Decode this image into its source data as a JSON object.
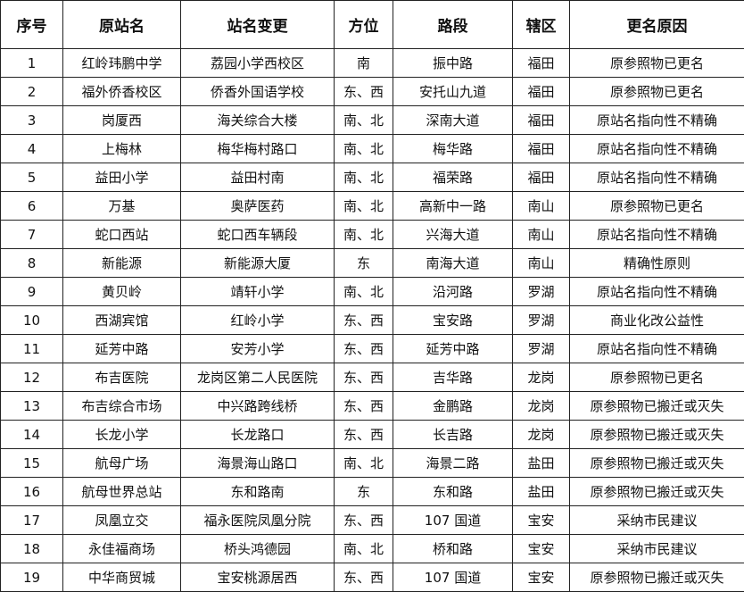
{
  "headers": [
    "序号",
    "原站名",
    "站名变更",
    "方位",
    "路段",
    "辖区",
    "更名原因"
  ],
  "rows": [
    [
      "1",
      "红岭玮鹏中学",
      "荔园小学西校区",
      "南",
      "振中路",
      "福田",
      "原参照物已更名"
    ],
    [
      "2",
      "福外侨香校区",
      "侨香外国语学校",
      "东、西",
      "安托山九道",
      "福田",
      "原参照物已更名"
    ],
    [
      "3",
      "岗厦西",
      "海关综合大楼",
      "南、北",
      "深南大道",
      "福田",
      "原站名指向性不精确"
    ],
    [
      "4",
      "上梅林",
      "梅华梅村路口",
      "南、北",
      "梅华路",
      "福田",
      "原站名指向性不精确"
    ],
    [
      "5",
      "益田小学",
      "益田村南",
      "南、北",
      "福荣路",
      "福田",
      "原站名指向性不精确"
    ],
    [
      "6",
      "万基",
      "奥萨医药",
      "南、北",
      "高新中一路",
      "南山",
      "原参照物已更名"
    ],
    [
      "7",
      "蛇口西站",
      "蛇口西车辆段",
      "南、北",
      "兴海大道",
      "南山",
      "原站名指向性不精确"
    ],
    [
      "8",
      "新能源",
      "新能源大厦",
      "东",
      "南海大道",
      "南山",
      "精确性原则"
    ],
    [
      "9",
      "黄贝岭",
      "靖轩小学",
      "南、北",
      "沿河路",
      "罗湖",
      "原站名指向性不精确"
    ],
    [
      "10",
      "西湖宾馆",
      "红岭小学",
      "东、西",
      "宝安路",
      "罗湖",
      "商业化改公益性"
    ],
    [
      "11",
      "延芳中路",
      "安芳小学",
      "东、西",
      "延芳中路",
      "罗湖",
      "原站名指向性不精确"
    ],
    [
      "12",
      "布吉医院",
      "龙岗区第二人民医院",
      "东、西",
      "吉华路",
      "龙岗",
      "原参照物已更名"
    ],
    [
      "13",
      "布吉综合市场",
      "中兴路跨线桥",
      "东、西",
      "金鹏路",
      "龙岗",
      "原参照物已搬迁或灭失"
    ],
    [
      "14",
      "长龙小学",
      "长龙路口",
      "东、西",
      "长吉路",
      "龙岗",
      "原参照物已搬迁或灭失"
    ],
    [
      "15",
      "航母广场",
      "海景海山路口",
      "南、北",
      "海景二路",
      "盐田",
      "原参照物已搬迁或灭失"
    ],
    [
      "16",
      "航母世界总站",
      "东和路南",
      "东",
      "东和路",
      "盐田",
      "原参照物已搬迁或灭失"
    ],
    [
      "17",
      "凤凰立交",
      "福永医院凤凰分院",
      "东、西",
      "107 国道",
      "宝安",
      "采纳市民建议"
    ],
    [
      "18",
      "永佳福商场",
      "桥头鸿德园",
      "南、北",
      "桥和路",
      "宝安",
      "采纳市民建议"
    ],
    [
      "19",
      "中华商贸城",
      "宝安桃源居西",
      "东、西",
      "107 国道",
      "宝安",
      "原参照物已搬迁或灭失"
    ]
  ]
}
